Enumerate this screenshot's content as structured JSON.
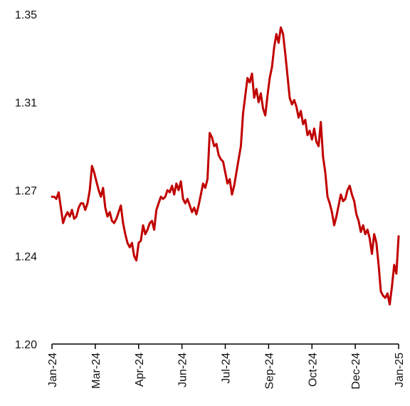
{
  "chart_data": {
    "type": "line",
    "title": "",
    "xlabel": "",
    "ylabel": "",
    "ylim": [
      1.2,
      1.35
    ],
    "grid": false,
    "legend": "none",
    "x_tick_labels": [
      "Jan-24",
      "Mar-24",
      "Apr-24",
      "Jun-24",
      "Jul-24",
      "Sep-24",
      "Oct-24",
      "Dec-24",
      "Jan-25"
    ],
    "y_ticks": [
      {
        "value": 1.2,
        "label": "1.20"
      },
      {
        "value": 1.24,
        "label": "1.24"
      },
      {
        "value": 1.27,
        "label": "1.27"
      },
      {
        "value": 1.31,
        "label": "1.31"
      },
      {
        "value": 1.35,
        "label": "1.35"
      }
    ],
    "series": [
      {
        "color": "#c00000",
        "x_range": [
          0,
          8
        ],
        "values": [
          1.267,
          1.267,
          1.266,
          1.269,
          1.262,
          1.255,
          1.258,
          1.26,
          1.258,
          1.261,
          1.257,
          1.258,
          1.262,
          1.264,
          1.264,
          1.261,
          1.264,
          1.27,
          1.281,
          1.278,
          1.274,
          1.27,
          1.267,
          1.271,
          1.262,
          1.258,
          1.26,
          1.256,
          1.255,
          1.257,
          1.26,
          1.263,
          1.255,
          1.25,
          1.246,
          1.244,
          1.246,
          1.24,
          1.238,
          1.246,
          1.247,
          1.254,
          1.25,
          1.252,
          1.255,
          1.256,
          1.252,
          1.261,
          1.264,
          1.267,
          1.266,
          1.267,
          1.27,
          1.269,
          1.272,
          1.268,
          1.273,
          1.27,
          1.274,
          1.266,
          1.264,
          1.266,
          1.263,
          1.26,
          1.262,
          1.259,
          1.263,
          1.268,
          1.273,
          1.271,
          1.275,
          1.296,
          1.294,
          1.29,
          1.291,
          1.286,
          1.284,
          1.283,
          1.278,
          1.273,
          1.275,
          1.268,
          1.272,
          1.278,
          1.284,
          1.29,
          1.305,
          1.313,
          1.321,
          1.319,
          1.323,
          1.312,
          1.316,
          1.31,
          1.314,
          1.307,
          1.304,
          1.313,
          1.321,
          1.326,
          1.335,
          1.341,
          1.337,
          1.344,
          1.341,
          1.332,
          1.322,
          1.312,
          1.309,
          1.311,
          1.308,
          1.303,
          1.306,
          1.3,
          1.302,
          1.295,
          1.297,
          1.293,
          1.298,
          1.292,
          1.29,
          1.301,
          1.285,
          1.278,
          1.267,
          1.264,
          1.26,
          1.254,
          1.258,
          1.263,
          1.268,
          1.265,
          1.266,
          1.27,
          1.272,
          1.268,
          1.265,
          1.259,
          1.256,
          1.251,
          1.254,
          1.25,
          1.252,
          1.248,
          1.241,
          1.25,
          1.246,
          1.236,
          1.224,
          1.222,
          1.221,
          1.223,
          1.218,
          1.226,
          1.236,
          1.232,
          1.249
        ]
      }
    ]
  }
}
